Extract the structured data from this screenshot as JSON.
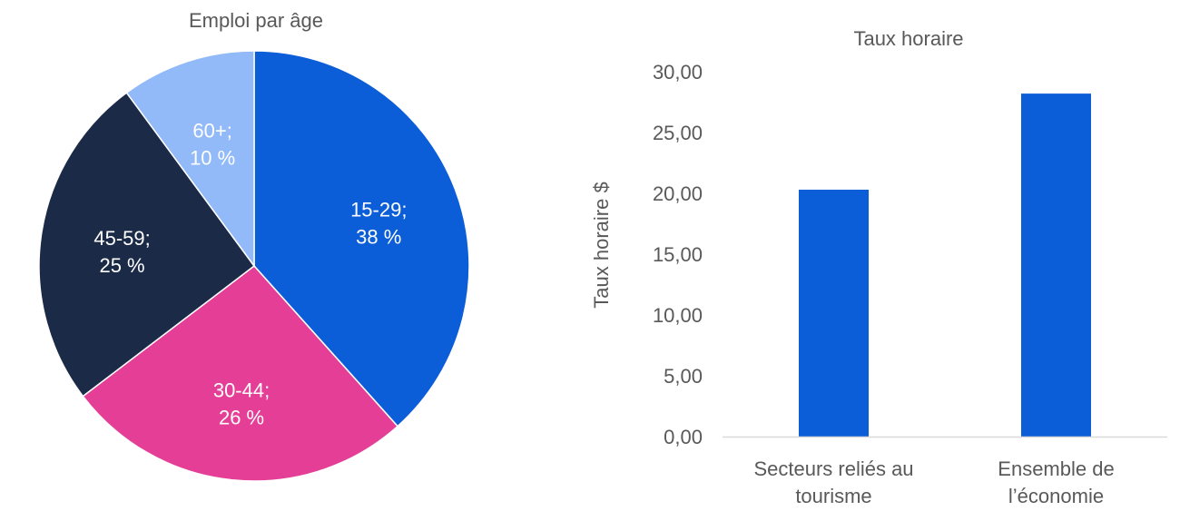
{
  "chart_data": [
    {
      "type": "pie",
      "title": "Emploi par âge",
      "slices": [
        {
          "label": "15-29",
          "value": 38,
          "display": "38 %",
          "color": "#0B5ED7",
          "text_color": "#ffffff"
        },
        {
          "label": "30-44",
          "value": 26,
          "display": "26 %",
          "color": "#E43E96",
          "text_color": "#ffffff"
        },
        {
          "label": "45-59",
          "value": 25,
          "display": "25 %",
          "color": "#1B2A47",
          "text_color": "#ffffff"
        },
        {
          "label": "60+",
          "value": 10,
          "display": "10 %",
          "color": "#92BAF8",
          "text_color": "#ffffff"
        }
      ]
    },
    {
      "type": "bar",
      "title": "Taux horaire",
      "ylabel": "Taux horaire $",
      "ylim": [
        0,
        30
      ],
      "yticks": [
        {
          "value": 0,
          "label": "0,00"
        },
        {
          "value": 5,
          "label": "5,00"
        },
        {
          "value": 10,
          "label": "10,00"
        },
        {
          "value": 15,
          "label": "15,00"
        },
        {
          "value": 20,
          "label": "20,00"
        },
        {
          "value": 25,
          "label": "25,00"
        },
        {
          "value": 30,
          "label": "30,00"
        }
      ],
      "categories": [
        [
          "Secteurs reliés au",
          "tourisme"
        ],
        [
          "Ensemble de",
          "l’économie"
        ]
      ],
      "values": [
        20.3,
        28.2
      ],
      "bar_color": "#0B5ED7",
      "grid": false
    }
  ]
}
